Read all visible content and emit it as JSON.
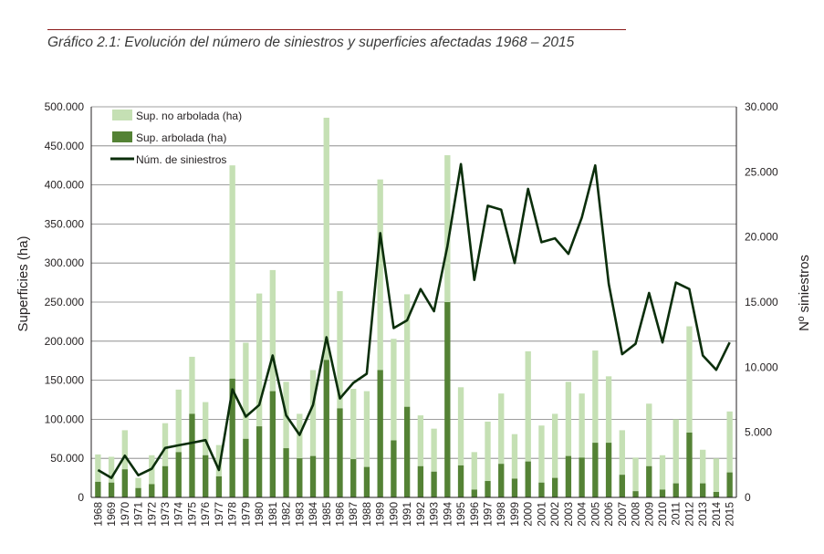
{
  "title": "Gráfico 2.1: Evolución del número de siniestros y superficies afectadas 1968 – 2015",
  "colors": {
    "no_arbolada": "#c5e0b4",
    "arbolada": "#548235",
    "siniestros": "#0b2e0b",
    "grid": "#7f7f7f",
    "rule": "#8b1a1a"
  },
  "chart_data": {
    "type": "bar",
    "title": "Gráfico 2.1: Evolución del número de siniestros y superficies afectadas 1968 – 2015",
    "categories": [
      "1968",
      "1969",
      "1970",
      "1971",
      "1972",
      "1973",
      "1974",
      "1975",
      "1976",
      "1977",
      "1978",
      "1979",
      "1980",
      "1981",
      "1982",
      "1983",
      "1984",
      "1985",
      "1986",
      "1987",
      "1988",
      "1989",
      "1990",
      "1991",
      "1992",
      "1993",
      "1994",
      "1995",
      "1996",
      "1997",
      "1998",
      "1999",
      "2000",
      "2001",
      "2002",
      "2003",
      "2004",
      "2005",
      "2006",
      "2007",
      "2008",
      "2009",
      "2010",
      "2011",
      "2012",
      "2013",
      "2014",
      "2015"
    ],
    "ylabel": "Superficies (ha)",
    "y2label": "Nº siniestros",
    "ylim": [
      0,
      500000
    ],
    "y2lim": [
      0,
      30000
    ],
    "yticks": [
      "0",
      "50.000",
      "100.000",
      "150.000",
      "200.000",
      "250.000",
      "300.000",
      "350.000",
      "400.000",
      "450.000",
      "500.000"
    ],
    "y2ticks": [
      "0",
      "5.000",
      "10.000",
      "15.000",
      "20.000",
      "25.000",
      "30.000"
    ],
    "grid": true,
    "legend_position": "top-left",
    "series": [
      {
        "name": "Sup. no arbolada (ha)",
        "kind": "stacked-bar-top",
        "values": [
          35000,
          33000,
          50000,
          13000,
          37000,
          55000,
          80000,
          73000,
          68000,
          40000,
          273000,
          123000,
          170000,
          155000,
          85000,
          57000,
          110000,
          310000,
          150000,
          90000,
          97000,
          244000,
          130000,
          144000,
          65000,
          55000,
          188000,
          100000,
          48000,
          76000,
          90000,
          57000,
          141000,
          73000,
          82000,
          95000,
          82000,
          118000,
          85000,
          57000,
          43000,
          80000,
          44000,
          82000,
          136000,
          43000,
          43000,
          78000
        ]
      },
      {
        "name": "Sup. arbolada (ha)",
        "kind": "stacked-bar-bottom",
        "values": [
          20000,
          19000,
          36000,
          12000,
          17000,
          40000,
          58000,
          107000,
          54000,
          27000,
          152000,
          75000,
          91000,
          136000,
          63000,
          50000,
          53000,
          176000,
          114000,
          49000,
          39000,
          163000,
          73000,
          116000,
          40000,
          33000,
          250000,
          41000,
          10000,
          21000,
          43000,
          24000,
          46000,
          19000,
          25000,
          53000,
          51000,
          70000,
          70000,
          29000,
          8000,
          40000,
          10000,
          18000,
          83000,
          18000,
          7000,
          32000
        ]
      },
      {
        "name": "Núm. de siniestros",
        "kind": "line",
        "axis": "right",
        "values": [
          2100,
          1500,
          3200,
          1700,
          2200,
          3800,
          4000,
          4200,
          4400,
          2100,
          8300,
          6200,
          7100,
          10900,
          6300,
          4800,
          7100,
          12300,
          7600,
          8800,
          9500,
          20300,
          13000,
          13600,
          16000,
          14300,
          19300,
          25600,
          16700,
          22400,
          22100,
          18000,
          23700,
          19600,
          19900,
          18700,
          21500,
          25500,
          16400,
          11000,
          11800,
          15700,
          11900,
          16500,
          16000,
          10900,
          9800,
          11900
        ]
      }
    ]
  }
}
